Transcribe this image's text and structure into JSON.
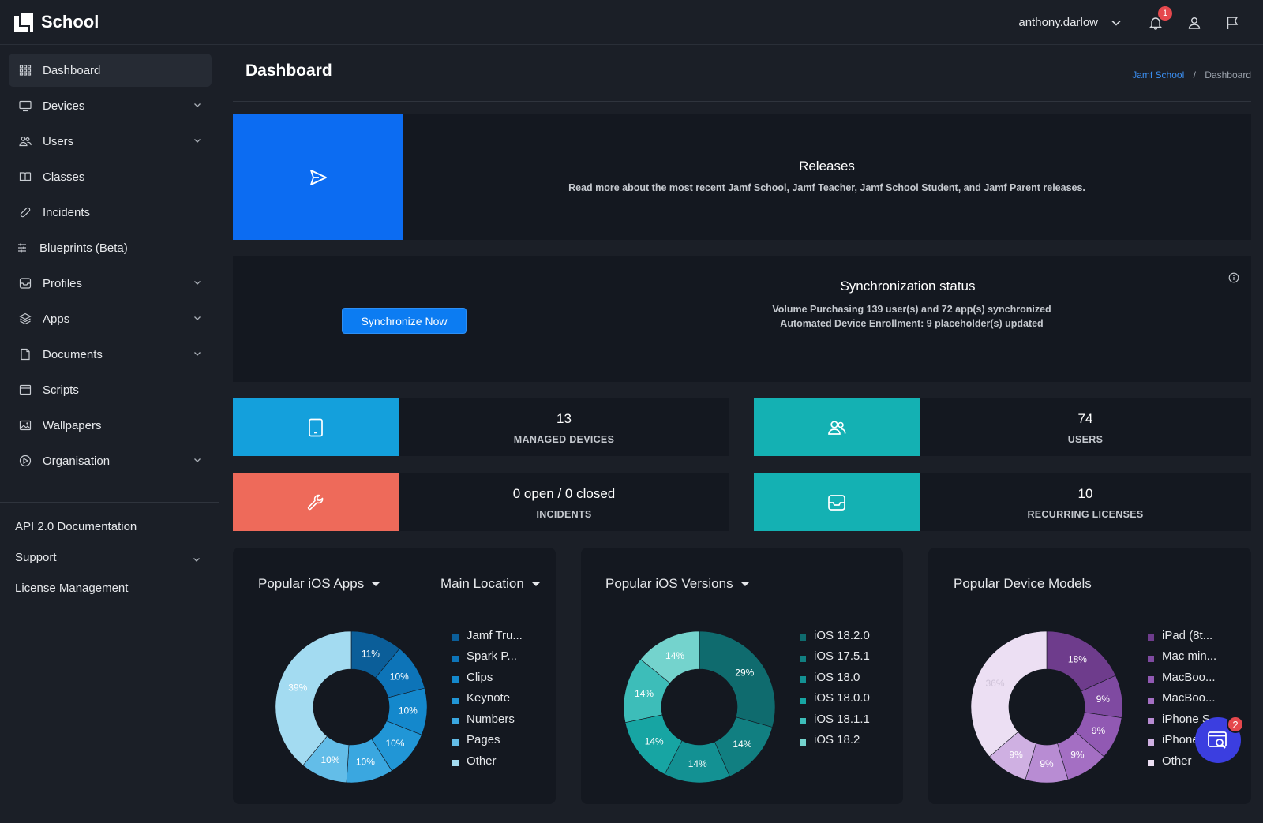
{
  "app": {
    "name": "School"
  },
  "header": {
    "user_name": "anthony.darlow",
    "notifications_count": "1"
  },
  "sidebar": {
    "items": [
      {
        "label": "Dashboard",
        "icon": "grid-icon",
        "active": true,
        "has_children": false
      },
      {
        "label": "Devices",
        "icon": "monitor-icon",
        "has_children": true
      },
      {
        "label": "Users",
        "icon": "users-icon",
        "has_children": true
      },
      {
        "label": "Classes",
        "icon": "book-icon",
        "has_children": false
      },
      {
        "label": "Incidents",
        "icon": "bandage-icon",
        "has_children": false
      },
      {
        "label": "Blueprints (Beta)",
        "icon": "sliders-icon",
        "has_children": false
      },
      {
        "label": "Profiles",
        "icon": "inbox-icon",
        "has_children": true
      },
      {
        "label": "Apps",
        "icon": "layers-icon",
        "has_children": true
      },
      {
        "label": "Documents",
        "icon": "file-icon",
        "has_children": true
      },
      {
        "label": "Scripts",
        "icon": "window-icon",
        "has_children": false
      },
      {
        "label": "Wallpapers",
        "icon": "image-icon",
        "has_children": false
      },
      {
        "label": "Organisation",
        "icon": "target-icon",
        "has_children": true
      }
    ],
    "footer_links": [
      {
        "label": "API 2.0 Documentation",
        "has_children": false
      },
      {
        "label": "Support",
        "has_children": true
      },
      {
        "label": "License Management",
        "has_children": false
      }
    ]
  },
  "page": {
    "title": "Dashboard",
    "breadcrumb": {
      "root": "Jamf School",
      "separator": "/",
      "current": "Dashboard"
    }
  },
  "releases": {
    "title": "Releases",
    "description": "Read more about the most recent Jamf School, Jamf Teacher, Jamf School Student, and Jamf Parent releases."
  },
  "sync": {
    "button_label": "Synchronize Now",
    "title": "Synchronization status",
    "line1": "Volume Purchasing 139 user(s) and 72 app(s) synchronized",
    "line2": "Automated Device Enrollment: 9 placeholder(s) updated"
  },
  "stats": {
    "managed_devices": {
      "value": "13",
      "label": "MANAGED DEVICES",
      "color": "#14a0dc"
    },
    "users": {
      "value": "74",
      "label": "USERS",
      "color": "#14b1b3"
    },
    "incidents": {
      "value": "0 open / 0 closed",
      "label": "INCIDENTS",
      "color": "#ee6a5a"
    },
    "licenses": {
      "value": "10",
      "label": "RECURRING LICENSES",
      "color": "#14b1b3"
    }
  },
  "cards": {
    "apps": {
      "title": "Popular iOS Apps",
      "filter": "Main Location"
    },
    "versions": {
      "title": "Popular iOS Versions"
    },
    "models": {
      "title": "Popular Device Models"
    }
  },
  "chart_data": [
    {
      "type": "pie",
      "title": "Popular iOS Apps",
      "categories": [
        "Jamf Tru...",
        "Spark P...",
        "Clips",
        "Keynote",
        "Numbers",
        "Pages",
        "Other"
      ],
      "values": [
        11,
        10,
        10,
        10,
        10,
        10,
        39
      ],
      "labels": [
        "11%",
        "10%",
        "10%",
        "10%",
        "10%",
        "10%",
        "39%"
      ],
      "colors": [
        "#0b5e99",
        "#0d74b8",
        "#1488cc",
        "#2196d6",
        "#3aa7e0",
        "#63bde8",
        "#a3dbf1"
      ]
    },
    {
      "type": "pie",
      "title": "Popular iOS Versions",
      "categories": [
        "iOS 18.2.0",
        "iOS 17.5.1",
        "iOS 18.0",
        "iOS 18.0.0",
        "iOS 18.1.1",
        "iOS 18.2"
      ],
      "values": [
        29,
        14,
        14,
        14,
        14,
        14
      ],
      "labels": [
        "29%",
        "14%",
        "14%",
        "14%",
        "14%",
        "14%"
      ],
      "colors": [
        "#0f6b6e",
        "#117f81",
        "#139193",
        "#17a5a3",
        "#3dbdb9",
        "#74d3cd"
      ]
    },
    {
      "type": "pie",
      "title": "Popular Device Models",
      "categories": [
        "iPad (8t...",
        "Mac min...",
        "MacBoo...",
        "MacBoo...",
        "iPhone S...",
        "iPhone...",
        "Other"
      ],
      "values": [
        18,
        9,
        9,
        9,
        9,
        9,
        36
      ],
      "labels": [
        "18%",
        "9%",
        "9%",
        "9%",
        "9%",
        "9%",
        "36%"
      ],
      "colors": [
        "#6e3c8c",
        "#7f4aa1",
        "#9159b3",
        "#a46fc3",
        "#b88cd3",
        "#cfb0e2",
        "#ecdff3"
      ]
    }
  ],
  "fab": {
    "badge": "2"
  }
}
